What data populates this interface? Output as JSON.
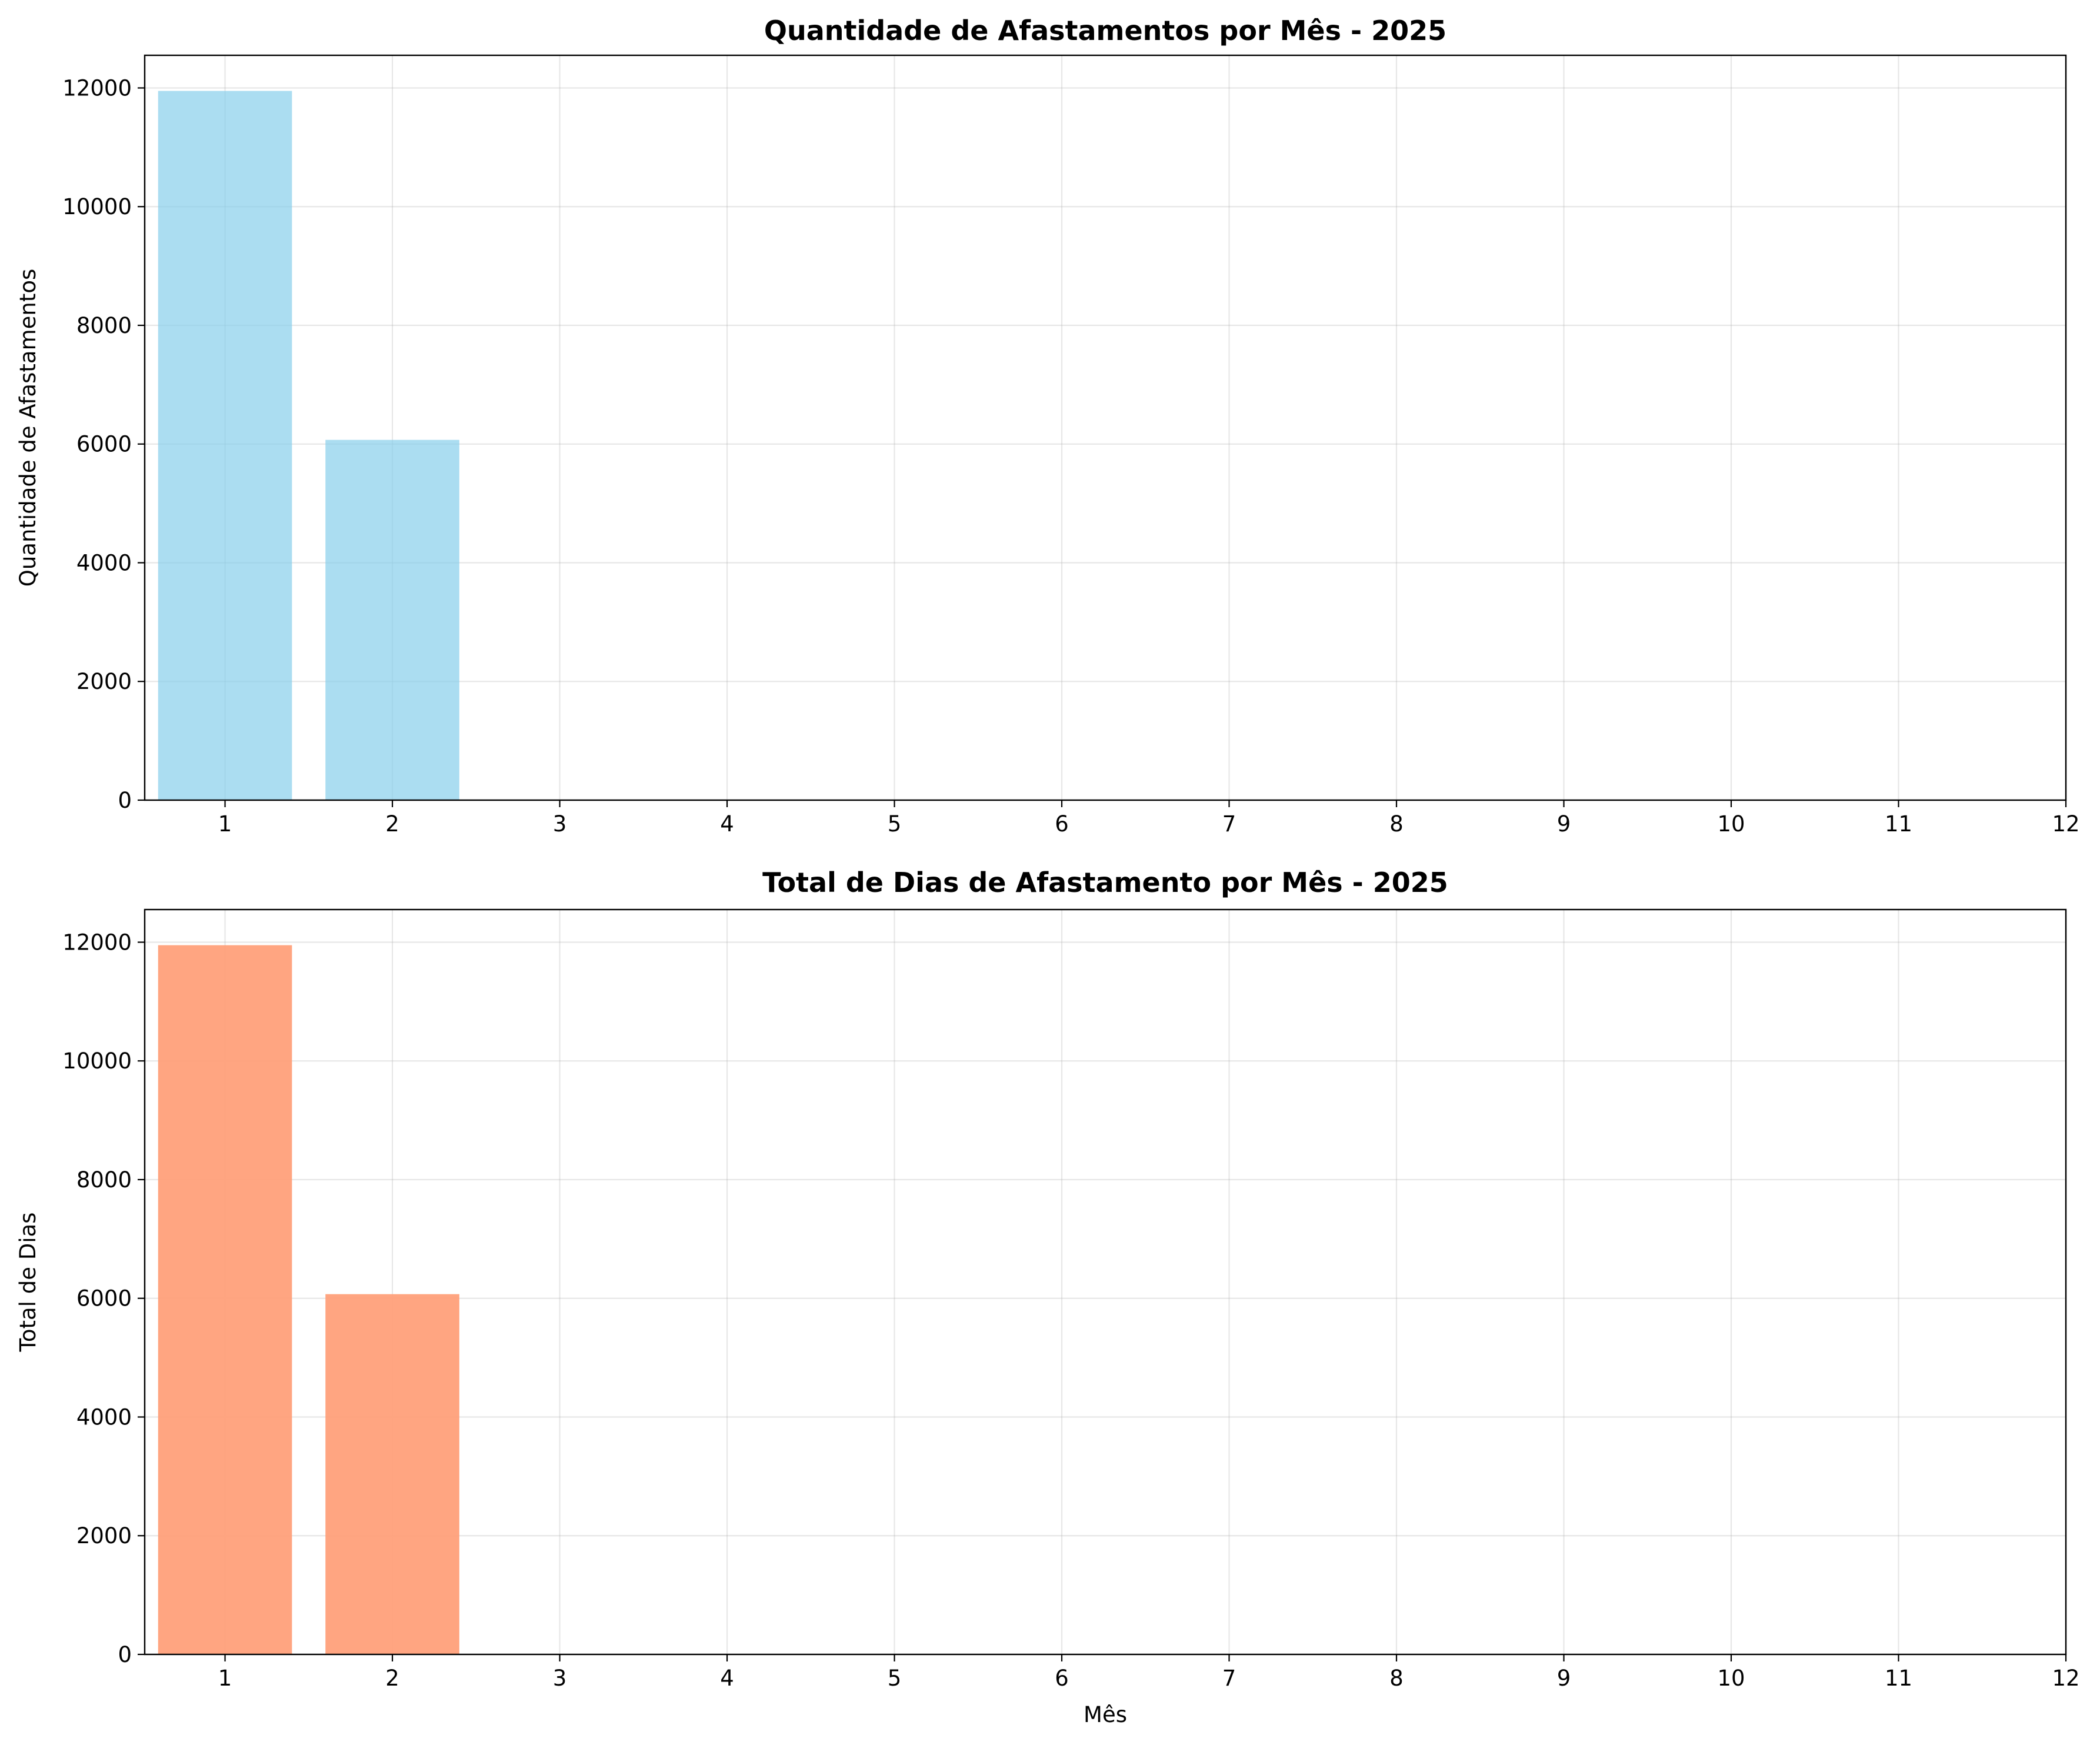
{
  "chart_data": [
    {
      "type": "bar",
      "title": "Quantidade de Afastamentos por Mês - 2025",
      "xlabel": "",
      "ylabel": "Quantidade de Afastamentos",
      "categories": [
        "1",
        "2",
        "3",
        "4",
        "5",
        "6",
        "7",
        "8",
        "9",
        "10",
        "11",
        "12"
      ],
      "values": [
        11950,
        6070,
        0,
        0,
        0,
        0,
        0,
        0,
        0,
        0,
        0,
        0
      ],
      "xlim": [
        0.52,
        12
      ],
      "ylim": [
        0,
        12550
      ],
      "yticks": [
        0,
        2000,
        4000,
        6000,
        8000,
        10000,
        12000
      ],
      "bar_color": "#87CEEB",
      "bar_opacity": 0.7,
      "grid": true
    },
    {
      "type": "bar",
      "title": "Total de Dias de Afastamento por Mês - 2025",
      "xlabel": "Mês",
      "ylabel": "Total de Dias",
      "categories": [
        "1",
        "2",
        "3",
        "4",
        "5",
        "6",
        "7",
        "8",
        "9",
        "10",
        "11",
        "12"
      ],
      "values": [
        11950,
        6070,
        0,
        0,
        0,
        0,
        0,
        0,
        0,
        0,
        0,
        0
      ],
      "xlim": [
        0.52,
        12
      ],
      "ylim": [
        0,
        12550
      ],
      "yticks": [
        0,
        2000,
        4000,
        6000,
        8000,
        10000,
        12000
      ],
      "bar_color": "#FFA07A",
      "bar_opacity": 0.95,
      "grid": true
    }
  ]
}
